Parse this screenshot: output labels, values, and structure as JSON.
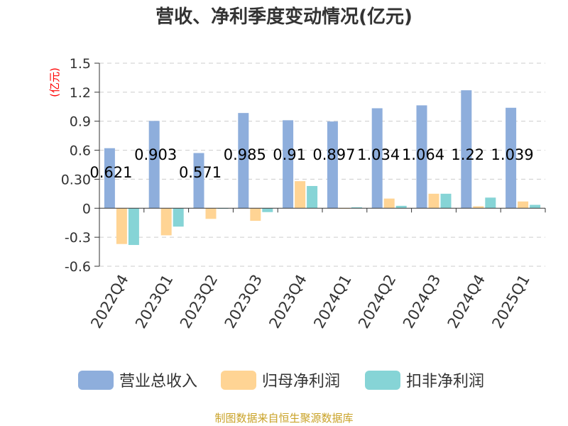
{
  "chart_data": {
    "type": "bar",
    "title": "营收、净利季度变动情况(亿元)",
    "ylabel": "(亿元)",
    "ylim": [
      -0.6,
      1.5
    ],
    "yticks": [
      "1.5",
      "1.2",
      "0.9",
      "0.6",
      "0.30",
      "0",
      "-0.3",
      "-0.6"
    ],
    "grid": true,
    "legend_position": "bottom",
    "categories": [
      "2022Q4",
      "2023Q1",
      "2023Q2",
      "2023Q3",
      "2023Q4",
      "2024Q1",
      "2024Q2",
      "2024Q3",
      "2024Q4",
      "2025Q1"
    ],
    "series": [
      {
        "name": "营业总收入",
        "color": "#8eaedc",
        "values": [
          0.621,
          0.903,
          0.571,
          0.985,
          0.91,
          0.897,
          1.034,
          1.064,
          1.22,
          1.039
        ],
        "labels": [
          "0.621",
          "0.903",
          "0.571",
          "0.985",
          "0.91",
          "0.897",
          "1.034",
          "1.064",
          "1.22",
          "1.039"
        ]
      },
      {
        "name": "归母净利润",
        "color": "#ffd494",
        "values": [
          -0.37,
          -0.28,
          -0.11,
          -0.13,
          0.28,
          -0.005,
          0.1,
          0.15,
          0.02,
          0.07
        ]
      },
      {
        "name": "扣非净利润",
        "color": "#86d4d6",
        "values": [
          -0.38,
          -0.19,
          -0.005,
          -0.04,
          0.23,
          0.01,
          0.025,
          0.15,
          0.11,
          0.035
        ]
      }
    ],
    "source": "制图数据来自恒生聚源数据库"
  }
}
